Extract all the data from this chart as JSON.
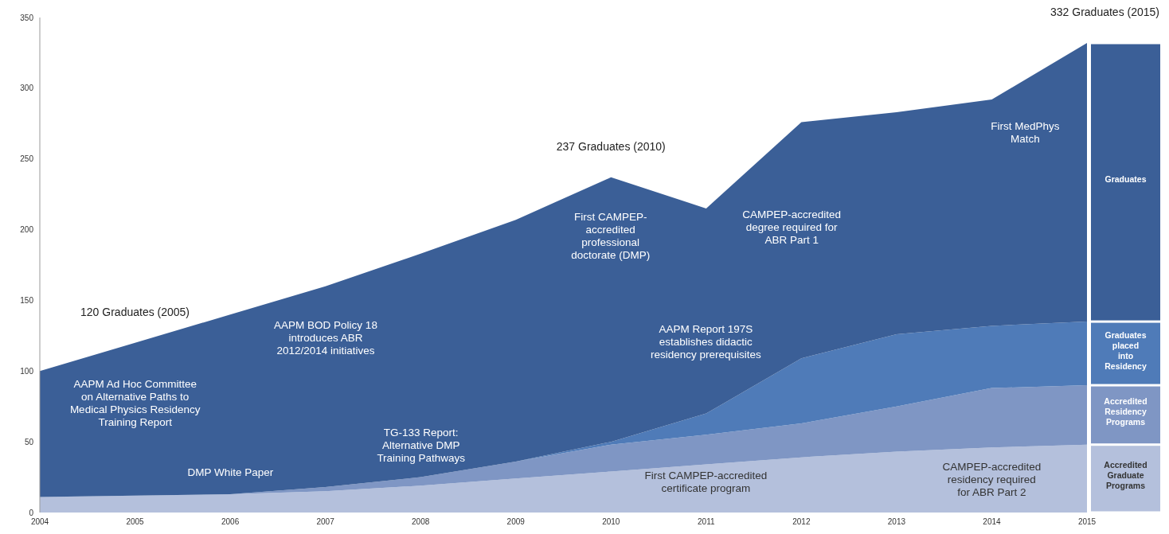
{
  "chart_data": {
    "type": "area",
    "stacked": true,
    "x": [
      2004,
      2005,
      2006,
      2007,
      2008,
      2009,
      2010,
      2011,
      2012,
      2013,
      2014,
      2015
    ],
    "series": [
      {
        "name": "Accredited Graduate Programs",
        "color": "#b4c0dc",
        "values": [
          11,
          12,
          13,
          15,
          19,
          24,
          29,
          34,
          39,
          43,
          46,
          48
        ]
      },
      {
        "name": "Accredited Residency Programs",
        "color": "#7f96c4",
        "values": [
          0,
          0,
          0,
          3,
          6,
          12,
          19,
          21,
          24,
          32,
          42,
          42
        ]
      },
      {
        "name": "Graduates placed into Residency",
        "color": "#4f7bb8",
        "values": [
          0,
          0,
          0,
          0,
          0,
          0,
          2,
          15,
          46,
          51,
          44,
          45
        ]
      },
      {
        "name": "Graduates",
        "color": "#3b5f97",
        "values": [
          89,
          108,
          127,
          142,
          158,
          171,
          187,
          145,
          167,
          157,
          160,
          197
        ]
      }
    ],
    "xlim": [
      2004,
      2015
    ],
    "xticks": [
      2004,
      2005,
      2006,
      2007,
      2008,
      2009,
      2010,
      2011,
      2012,
      2013,
      2014,
      2015
    ],
    "ylim": [
      0,
      350
    ],
    "yticks": [
      0,
      50,
      100,
      150,
      200,
      250,
      300,
      350
    ],
    "grid": false,
    "legend": "right",
    "annotations": [
      {
        "text": "120 Graduates (2005)",
        "x": 2005,
        "y": 120
      },
      {
        "text": "237 Graduates (2010)",
        "x": 2010,
        "y": 237
      },
      {
        "text": "332 Graduates (2015)",
        "x": 2015,
        "y": 332
      },
      "AAPM Ad Hoc Committee\non Alternative Paths to\nMedical Physics Residency\nTraining Report",
      "DMP White Paper",
      "AAPM BOD Policy 18\nintroduces ABR\n2012/2014 initiatives",
      "TG-133 Report:\nAlternative DMP\nTraining Pathways",
      "First CAMPEP-\naccredited\nprofessional\ndoctorate (DMP)",
      "AAPM Report 197S\nestablishes didactic\nresidency prerequisites",
      "CAMPEP-accredited\ndegree required for\nABR Part 1",
      "First CAMPEP-accredited\ncertificate program",
      "CAMPEP-accredited\nresidency required\nfor ABR Part 2",
      "First MedPhys\nMatch"
    ]
  }
}
